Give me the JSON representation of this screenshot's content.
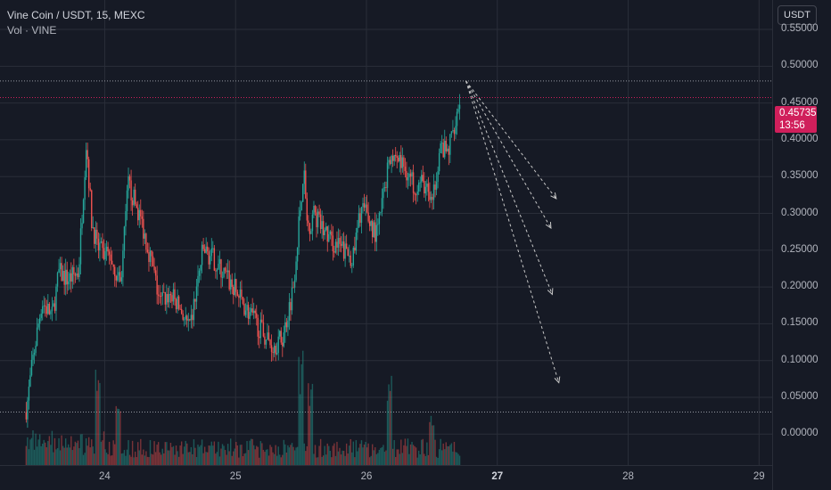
{
  "header": {
    "title": "Vine Coin / USDT, 15, MEXC",
    "indicator": "Vol · VINE",
    "currency_button": "USDT"
  },
  "price_badge": {
    "price": "0.45735",
    "countdown": "13:56"
  },
  "colors": {
    "background": "#161a25",
    "up": "#26a69a",
    "down": "#ef5350",
    "badge": "#d01f5b",
    "grid": "#2a2e39"
  },
  "chart_data": {
    "type": "candlestick",
    "symbol": "VINE/USDT",
    "interval": "15",
    "exchange": "MEXC",
    "yticks": [
      "0.55000",
      "0.50000",
      "0.45000",
      "0.40000",
      "0.35000",
      "0.30000",
      "0.25000",
      "0.20000",
      "0.15000",
      "0.10000",
      "0.05000",
      "0.00000"
    ],
    "ylim": [
      -0.042,
      0.59
    ],
    "xticks": [
      {
        "label": "24",
        "day": 24
      },
      {
        "label": "25",
        "day": 25
      },
      {
        "label": "26",
        "day": 26
      },
      {
        "label": "27",
        "day": 27
      },
      {
        "label": "28",
        "day": 28
      },
      {
        "label": "29",
        "day": 29
      }
    ],
    "xlim": [
      23.2,
      29.1
    ],
    "price_path": [
      [
        23.4,
        0.03
      ],
      [
        23.45,
        0.1
      ],
      [
        23.52,
        0.18
      ],
      [
        23.6,
        0.16
      ],
      [
        23.65,
        0.22
      ],
      [
        23.72,
        0.21
      ],
      [
        23.8,
        0.22
      ],
      [
        23.86,
        0.4
      ],
      [
        23.9,
        0.29
      ],
      [
        23.95,
        0.25
      ],
      [
        24.05,
        0.24
      ],
      [
        24.12,
        0.2
      ],
      [
        24.18,
        0.34
      ],
      [
        24.28,
        0.29
      ],
      [
        24.35,
        0.24
      ],
      [
        24.42,
        0.18
      ],
      [
        24.5,
        0.19
      ],
      [
        24.58,
        0.17
      ],
      [
        24.65,
        0.14
      ],
      [
        24.75,
        0.25
      ],
      [
        24.82,
        0.24
      ],
      [
        24.9,
        0.22
      ],
      [
        24.98,
        0.2
      ],
      [
        25.05,
        0.18
      ],
      [
        25.12,
        0.16
      ],
      [
        25.2,
        0.14
      ],
      [
        25.28,
        0.12
      ],
      [
        25.36,
        0.13
      ],
      [
        25.44,
        0.2
      ],
      [
        25.52,
        0.36
      ],
      [
        25.55,
        0.28
      ],
      [
        25.6,
        0.3
      ],
      [
        25.66,
        0.28
      ],
      [
        25.74,
        0.26
      ],
      [
        25.82,
        0.25
      ],
      [
        25.9,
        0.24
      ],
      [
        25.96,
        0.31
      ],
      [
        26.02,
        0.29
      ],
      [
        26.08,
        0.27
      ],
      [
        26.16,
        0.36
      ],
      [
        26.22,
        0.38
      ],
      [
        26.3,
        0.36
      ],
      [
        26.36,
        0.34
      ],
      [
        26.44,
        0.34
      ],
      [
        26.5,
        0.31
      ],
      [
        26.56,
        0.39
      ],
      [
        26.62,
        0.38
      ],
      [
        26.68,
        0.43
      ],
      [
        26.72,
        0.46
      ]
    ],
    "volume_spikes": [
      [
        23.95,
        0.78
      ],
      [
        24.1,
        0.55
      ],
      [
        25.5,
        1.0
      ],
      [
        25.57,
        0.75
      ],
      [
        26.18,
        0.8
      ],
      [
        26.5,
        0.5
      ]
    ],
    "horizontal_levels": [
      0.48,
      0.03
    ],
    "projections": {
      "origin": [
        26.76,
        0.48
      ],
      "targets": [
        [
          27.45,
          0.32
        ],
        [
          27.41,
          0.28
        ],
        [
          27.42,
          0.19
        ],
        [
          27.47,
          0.07
        ]
      ]
    },
    "last_price": 0.45735
  }
}
